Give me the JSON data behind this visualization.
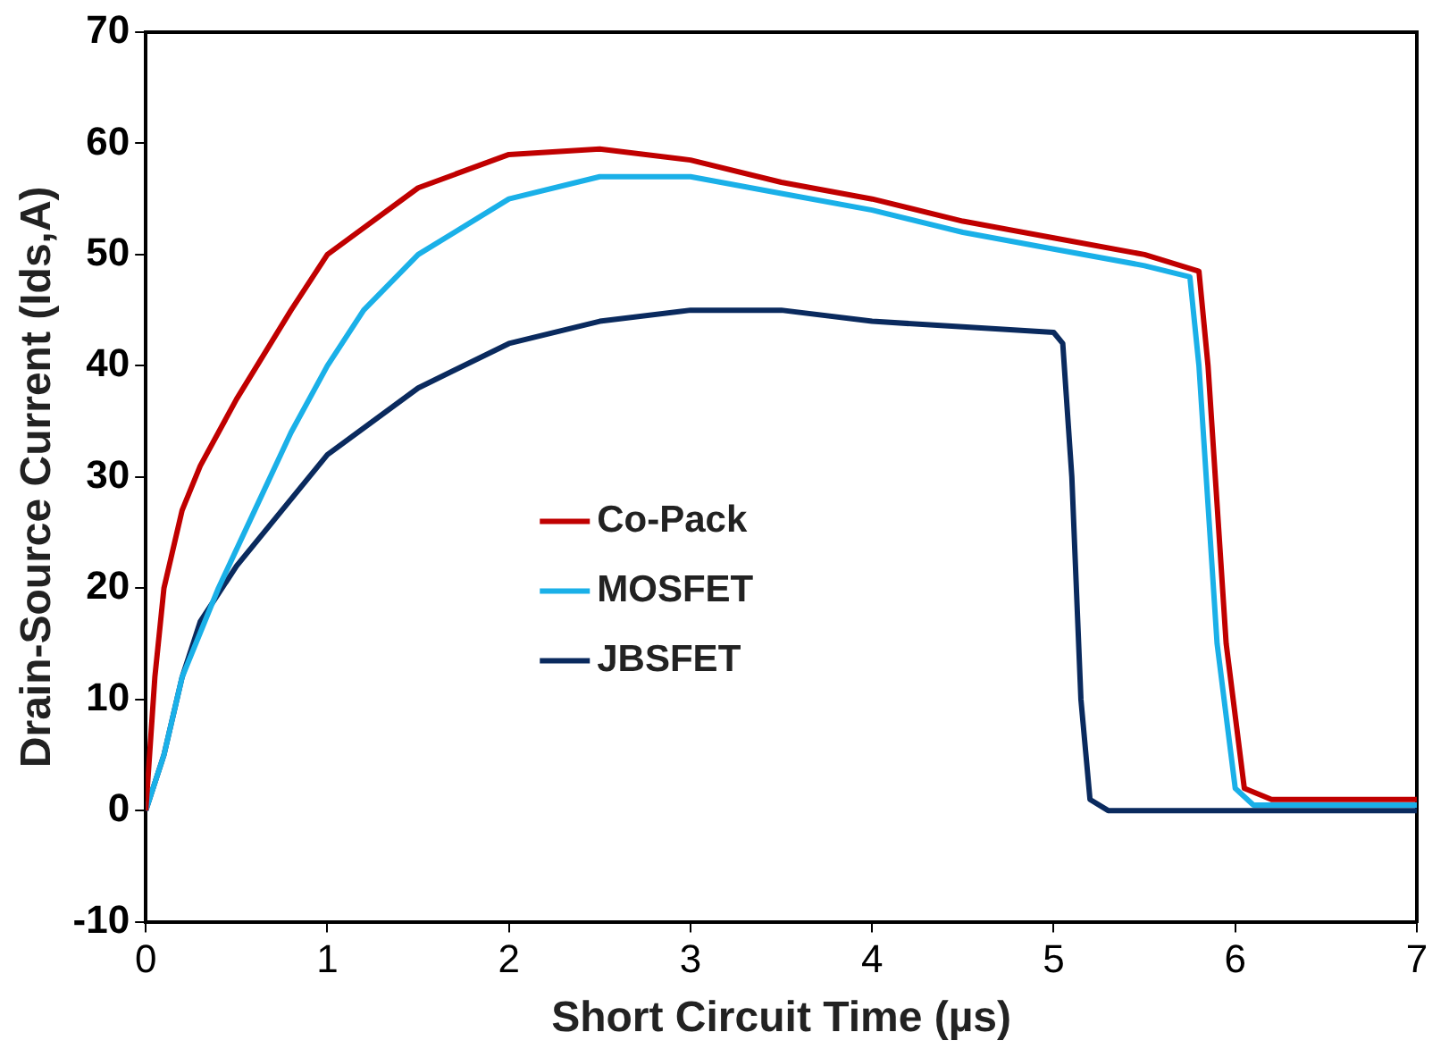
{
  "chart_data": {
    "type": "line",
    "xlabel": "Short Circuit Time (µs)",
    "ylabel": "Drain-Source Current (Ids,A)",
    "xlim": [
      0,
      7
    ],
    "ylim": [
      -10,
      70
    ],
    "xticks": [
      0,
      1,
      2,
      3,
      4,
      5,
      6,
      7
    ],
    "yticks": [
      -10,
      0,
      10,
      20,
      30,
      40,
      50,
      60,
      70
    ],
    "grid": false,
    "legend": "center",
    "marker": "none",
    "line_style": "solid",
    "series": [
      {
        "name": "Co-Pack",
        "color": "#c00000",
        "x": [
          0,
          0.05,
          0.1,
          0.2,
          0.3,
          0.5,
          0.8,
          1,
          1.5,
          2,
          2.5,
          3,
          3.5,
          4,
          4.5,
          5,
          5.5,
          5.8,
          5.85,
          5.95,
          6.05,
          6.2,
          6.6,
          7
        ],
        "values": [
          0,
          12,
          20,
          27,
          31,
          37,
          45,
          50,
          56,
          59,
          59.5,
          58.5,
          56.5,
          55,
          53,
          51.5,
          50,
          48.5,
          40,
          15,
          2,
          1,
          1,
          1
        ]
      },
      {
        "name": "MOSFET",
        "color": "#1ab0e8",
        "x": [
          0,
          0.1,
          0.2,
          0.4,
          0.6,
          0.8,
          1,
          1.2,
          1.5,
          2,
          2.5,
          3,
          3.5,
          4,
          4.5,
          5,
          5.5,
          5.75,
          5.8,
          5.9,
          6,
          6.1,
          6.6,
          7
        ],
        "values": [
          0,
          5,
          12,
          20,
          27,
          34,
          40,
          45,
          50,
          55,
          57,
          57,
          55.5,
          54,
          52,
          50.5,
          49,
          48,
          40,
          15,
          2,
          0.5,
          0.5,
          0.5
        ]
      },
      {
        "name": "JBSFET",
        "color": "#0a2a5e",
        "x": [
          0,
          0.1,
          0.2,
          0.3,
          0.5,
          1,
          1.5,
          2,
          2.5,
          3,
          3.5,
          4,
          4.5,
          5,
          5.05,
          5.1,
          5.15,
          5.2,
          5.3,
          6,
          7
        ],
        "values": [
          0,
          5,
          12,
          17,
          22,
          32,
          38,
          42,
          44,
          45,
          45,
          44,
          43.5,
          43,
          42,
          30,
          10,
          1,
          0,
          0,
          0
        ]
      }
    ]
  }
}
